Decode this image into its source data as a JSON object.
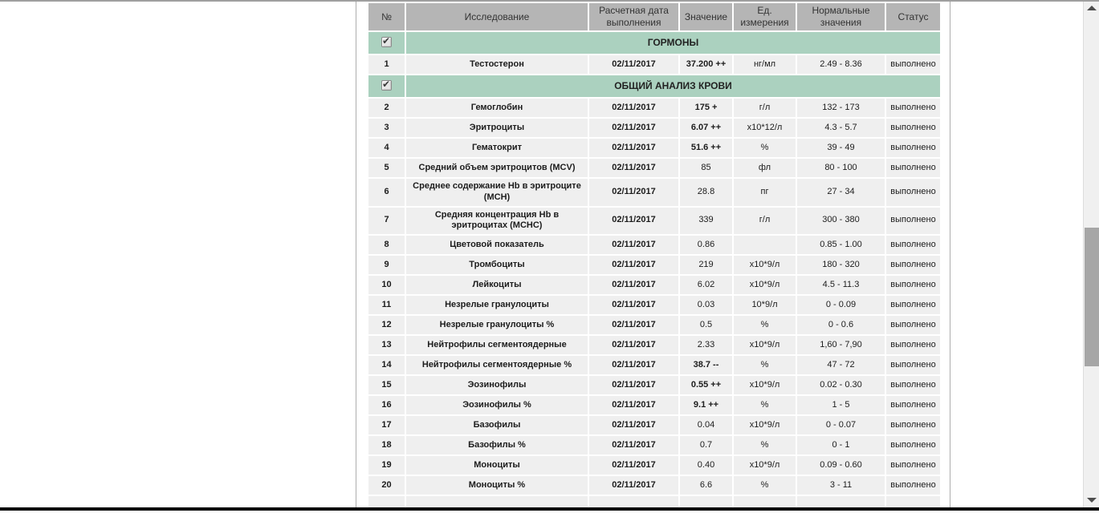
{
  "table": {
    "columns": [
      {
        "label": "№"
      },
      {
        "label": "Исследование"
      },
      {
        "label": "Расчетная дата выполнения"
      },
      {
        "label": "Значение"
      },
      {
        "label": "Ед. измерения"
      },
      {
        "label": "Нормальные значения"
      },
      {
        "label": "Статус"
      }
    ],
    "sections": [
      {
        "title": "ГОРМОНЫ",
        "checkbox_checked": true,
        "rows": [
          {
            "num": "1",
            "name": "Тестостерон",
            "date": "02/11/2017",
            "value": "37.200 ++",
            "value_flagged": true,
            "unit": "нг/мл",
            "normal": "2.49 - 8.36",
            "status": "выполнено"
          }
        ]
      },
      {
        "title": "ОБЩИЙ АНАЛИЗ КРОВИ",
        "checkbox_checked": true,
        "rows": [
          {
            "num": "2",
            "name": "Гемоглобин",
            "date": "02/11/2017",
            "value": "175 +",
            "value_flagged": true,
            "unit": "г/л",
            "normal": "132 - 173",
            "status": "выполнено"
          },
          {
            "num": "3",
            "name": "Эритроциты",
            "date": "02/11/2017",
            "value": "6.07 ++",
            "value_flagged": true,
            "unit": "x10*12/л",
            "normal": "4.3 - 5.7",
            "status": "выполнено"
          },
          {
            "num": "4",
            "name": "Гематокрит",
            "date": "02/11/2017",
            "value": "51.6 ++",
            "value_flagged": true,
            "unit": "%",
            "normal": "39 - 49",
            "status": "выполнено"
          },
          {
            "num": "5",
            "name": "Средний объем эритроцитов (MCV)",
            "date": "02/11/2017",
            "value": "85",
            "value_flagged": false,
            "unit": "фл",
            "normal": "80 - 100",
            "status": "выполнено"
          },
          {
            "num": "6",
            "name": "Среднее содержание Hb в эритроците (MCH)",
            "date": "02/11/2017",
            "value": "28.8",
            "value_flagged": false,
            "unit": "пг",
            "normal": "27 - 34",
            "status": "выполнено"
          },
          {
            "num": "7",
            "name": "Средняя концентрация Hb в эритроцитах (MCHC)",
            "date": "02/11/2017",
            "value": "339",
            "value_flagged": false,
            "unit": "г/л",
            "normal": "300 - 380",
            "status": "выполнено"
          },
          {
            "num": "8",
            "name": "Цветовой показатель",
            "date": "02/11/2017",
            "value": "0.86",
            "value_flagged": false,
            "unit": "",
            "normal": "0.85 - 1.00",
            "status": "выполнено"
          },
          {
            "num": "9",
            "name": "Тромбоциты",
            "date": "02/11/2017",
            "value": "219",
            "value_flagged": false,
            "unit": "x10*9/л",
            "normal": "180 - 320",
            "status": "выполнено"
          },
          {
            "num": "10",
            "name": "Лейкоциты",
            "date": "02/11/2017",
            "value": "6.02",
            "value_flagged": false,
            "unit": "x10*9/л",
            "normal": "4.5 - 11.3",
            "status": "выполнено"
          },
          {
            "num": "11",
            "name": "Незрелые гранулоциты",
            "date": "02/11/2017",
            "value": "0.03",
            "value_flagged": false,
            "unit": "10*9/л",
            "normal": "0 - 0.09",
            "status": "выполнено"
          },
          {
            "num": "12",
            "name": "Незрелые гранулоциты %",
            "date": "02/11/2017",
            "value": "0.5",
            "value_flagged": false,
            "unit": "%",
            "normal": "0 - 0.6",
            "status": "выполнено"
          },
          {
            "num": "13",
            "name": "Нейтрофилы сегментоядерные",
            "date": "02/11/2017",
            "value": "2.33",
            "value_flagged": false,
            "unit": "x10*9/л",
            "normal": "1,60 - 7,90",
            "status": "выполнено"
          },
          {
            "num": "14",
            "name": "Нейтрофилы сегментоядерные %",
            "date": "02/11/2017",
            "value": "38.7 --",
            "value_flagged": true,
            "unit": "%",
            "normal": "47 - 72",
            "status": "выполнено"
          },
          {
            "num": "15",
            "name": "Эозинофилы",
            "date": "02/11/2017",
            "value": "0.55 ++",
            "value_flagged": true,
            "unit": "x10*9/л",
            "normal": "0.02 - 0.30",
            "status": "выполнено"
          },
          {
            "num": "16",
            "name": "Эозинофилы %",
            "date": "02/11/2017",
            "value": "9.1 ++",
            "value_flagged": true,
            "unit": "%",
            "normal": "1 - 5",
            "status": "выполнено"
          },
          {
            "num": "17",
            "name": "Базофилы",
            "date": "02/11/2017",
            "value": "0.04",
            "value_flagged": false,
            "unit": "x10*9/л",
            "normal": "0 - 0.07",
            "status": "выполнено"
          },
          {
            "num": "18",
            "name": "Базофилы %",
            "date": "02/11/2017",
            "value": "0.7",
            "value_flagged": false,
            "unit": "%",
            "normal": "0 - 1",
            "status": "выполнено"
          },
          {
            "num": "19",
            "name": "Моноциты",
            "date": "02/11/2017",
            "value": "0.40",
            "value_flagged": false,
            "unit": "x10*9/л",
            "normal": "0.09 - 0.60",
            "status": "выполнено"
          },
          {
            "num": "20",
            "name": "Моноциты %",
            "date": "02/11/2017",
            "value": "6.6",
            "value_flagged": false,
            "unit": "%",
            "normal": "3 - 11",
            "status": "выполнено"
          }
        ]
      }
    ]
  },
  "colors": {
    "header_bg": "#b5b5b5",
    "section_bg": "#abd1bf",
    "row_bg": "#efefef",
    "scroll_thumb": "#a6a6a6"
  },
  "scrollbar": {
    "up_icon": "triangle-up",
    "down_icon": "triangle-down"
  }
}
